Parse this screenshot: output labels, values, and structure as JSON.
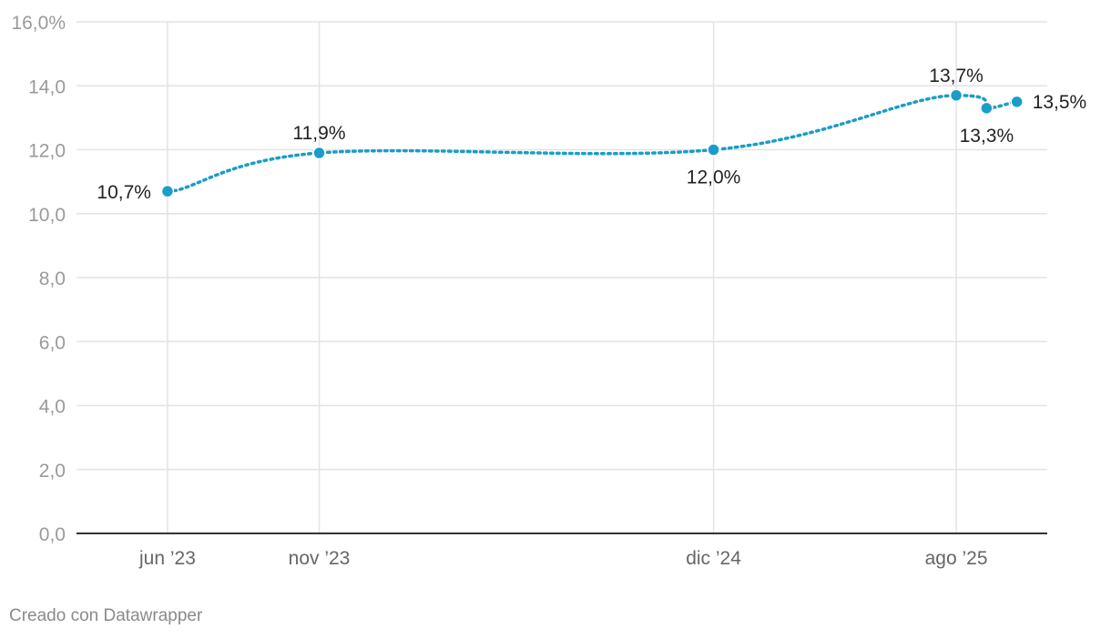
{
  "chart_data": {
    "type": "line",
    "ylim": [
      0,
      16
    ],
    "y_ticks": [
      {
        "value": 0,
        "label": "0,0"
      },
      {
        "value": 2,
        "label": "2,0"
      },
      {
        "value": 4,
        "label": "4,0"
      },
      {
        "value": 6,
        "label": "6,0"
      },
      {
        "value": 8,
        "label": "8,0"
      },
      {
        "value": 10,
        "label": "10,0"
      },
      {
        "value": 12,
        "label": "12,0"
      },
      {
        "value": 14,
        "label": "14,0"
      },
      {
        "value": 16,
        "label": "16,0%"
      }
    ],
    "x_ticks": [
      {
        "date": "2023-06",
        "label": "jun ’23"
      },
      {
        "date": "2023-11",
        "label": "nov ’23"
      },
      {
        "date": "2024-12",
        "label": "dic ’24"
      },
      {
        "date": "2025-08",
        "label": "ago ’25"
      }
    ],
    "xlim": [
      "2023-03",
      "2025-11"
    ],
    "grid": true,
    "series": [
      {
        "color": "#1a9dc9",
        "line_style": "dotted",
        "points": [
          {
            "x": "2023-06",
            "y": 10.7,
            "label": "10,7%"
          },
          {
            "x": "2023-11",
            "y": 11.9,
            "label": "11,9%"
          },
          {
            "x": "2024-12",
            "y": 12.0,
            "label": "12,0%"
          },
          {
            "x": "2025-08",
            "y": 13.7,
            "label": "13,7%"
          },
          {
            "x": "2025-09",
            "y": 13.3,
            "label": "13,3%"
          },
          {
            "x": "2025-10",
            "y": 13.5,
            "label": "13,5%"
          }
        ]
      }
    ]
  },
  "footer": {
    "credit": "Creado con Datawrapper"
  }
}
